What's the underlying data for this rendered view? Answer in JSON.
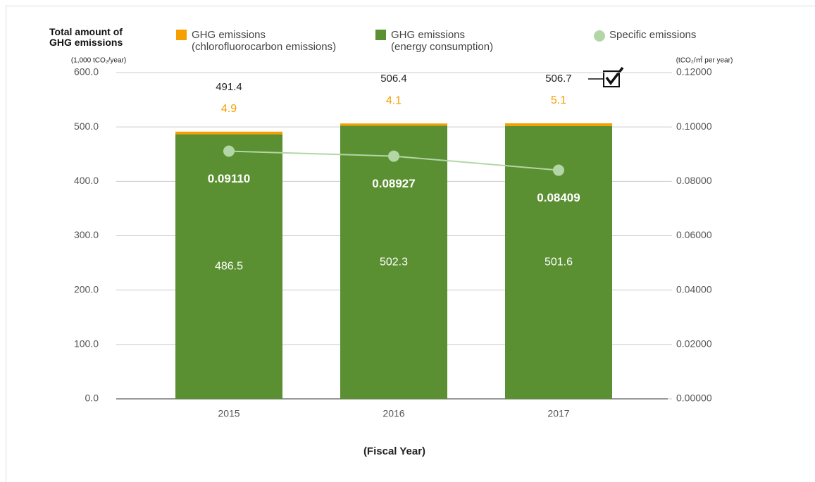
{
  "chart_data": {
    "type": "bar",
    "ylabel": "Total amount of\nGHG emissions",
    "yunit": "(1,000 tCO₂/year)",
    "y2unit": "(tCO₂/㎡ per year)",
    "xlabel": "(Fiscal Year)",
    "categories": [
      "2015",
      "2016",
      "2017"
    ],
    "stacked": true,
    "series": [
      {
        "name": "GHG emissions\n(energy consumption)",
        "color": "#5a8f32",
        "values": [
          486.5,
          502.3,
          501.6
        ]
      },
      {
        "name": "GHG emissions\n(chlorofluorocarbon emissions)",
        "color": "#f5a000",
        "values": [
          4.9,
          4.1,
          5.1
        ]
      },
      {
        "name": "Specific emissions",
        "type": "line",
        "axis": "y2",
        "color": "#b3d6a6",
        "values": [
          0.0911,
          0.08927,
          0.08409
        ],
        "value_labels": [
          "0.09110",
          "0.08927",
          "0.08409"
        ]
      }
    ],
    "totals": [
      491.4,
      506.4,
      506.7
    ],
    "ylim": [
      0,
      600
    ],
    "yticks": [
      {
        "value": 0,
        "label": "0.0"
      },
      {
        "value": 100,
        "label": "100.0"
      },
      {
        "value": 200,
        "label": "200.0"
      },
      {
        "value": 300,
        "label": "300.0"
      },
      {
        "value": 400,
        "label": "400.0"
      },
      {
        "value": 500,
        "label": "500.0"
      },
      {
        "value": 600,
        "label": "600.0"
      }
    ],
    "y2lim": [
      0,
      0.12
    ],
    "y2ticks": [
      {
        "value": 0,
        "label": "0.00000"
      },
      {
        "value": 0.02,
        "label": "0.02000"
      },
      {
        "value": 0.04,
        "label": "0.04000"
      },
      {
        "value": 0.06,
        "label": "0.06000"
      },
      {
        "value": 0.08,
        "label": "0.08000"
      },
      {
        "value": 0.1,
        "label": "0.10000"
      },
      {
        "value": 0.12,
        "label": "0.12000"
      }
    ],
    "grid": true
  }
}
